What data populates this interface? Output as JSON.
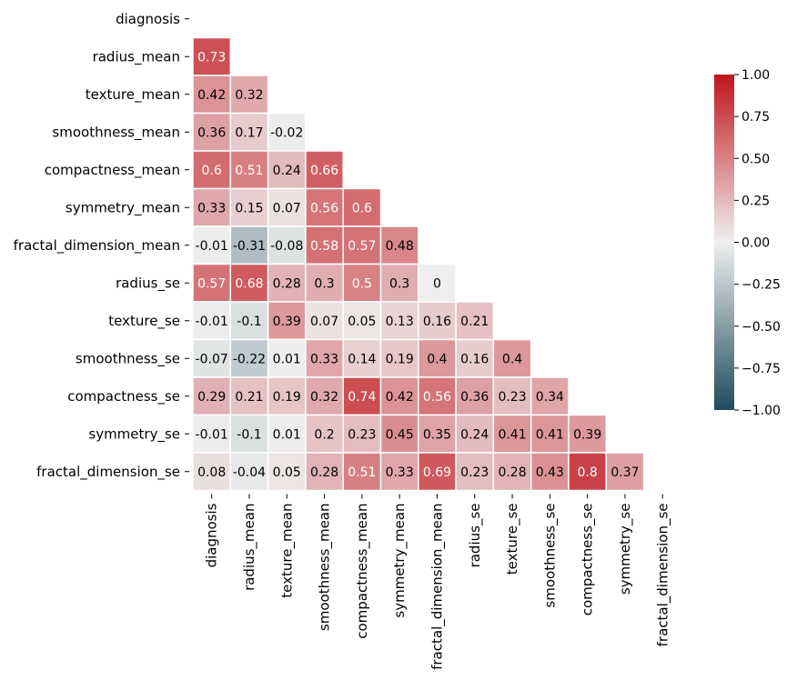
{
  "chart_data": {
    "type": "heatmap",
    "title": "",
    "xlabel": "",
    "ylabel": "",
    "layout": "lower-triangle",
    "variables": [
      "diagnosis",
      "radius_mean",
      "texture_mean",
      "smoothness_mean",
      "compactness_mean",
      "symmetry_mean",
      "fractal_dimension_mean",
      "radius_se",
      "texture_se",
      "smoothness_se",
      "compactness_se",
      "symmetry_se",
      "fractal_dimension_se"
    ],
    "values": [
      [],
      [
        0.73
      ],
      [
        0.42,
        0.32
      ],
      [
        0.36,
        0.17,
        -0.02
      ],
      [
        0.6,
        0.51,
        0.24,
        0.66
      ],
      [
        0.33,
        0.15,
        0.07,
        0.56,
        0.6
      ],
      [
        -0.01,
        -0.31,
        -0.08,
        0.58,
        0.57,
        0.48
      ],
      [
        0.57,
        0.68,
        0.28,
        0.3,
        0.5,
        0.3,
        0
      ],
      [
        -0.01,
        -0.1,
        0.39,
        0.07,
        0.05,
        0.13,
        0.16,
        0.21
      ],
      [
        -0.07,
        -0.22,
        0.01,
        0.33,
        0.14,
        0.19,
        0.4,
        0.16,
        0.4
      ],
      [
        0.29,
        0.21,
        0.19,
        0.32,
        0.74,
        0.42,
        0.56,
        0.36,
        0.23,
        0.34
      ],
      [
        -0.01,
        -0.1,
        0.01,
        0.2,
        0.23,
        0.45,
        0.35,
        0.24,
        0.41,
        0.41,
        0.39
      ],
      [
        0.08,
        -0.04,
        0.05,
        0.28,
        0.51,
        0.33,
        0.69,
        0.23,
        0.28,
        0.43,
        0.8,
        0.37
      ]
    ],
    "colorbar": {
      "range": [
        -1.0,
        1.0
      ],
      "ticks": [
        "1.00",
        "0.75",
        "0.50",
        "0.25",
        "0.00",
        "−0.25",
        "−0.50",
        "−0.75",
        "−1.00"
      ],
      "tick_values": [
        1.0,
        0.75,
        0.5,
        0.25,
        0.0,
        -0.25,
        -0.5,
        -0.75,
        -1.0
      ],
      "placement": "right"
    },
    "colors": {
      "negative": "#1f4b5c",
      "neutral": "#efefef",
      "positive": "#c0151c",
      "cell_border": "#ffffff",
      "text_dark": "#000000",
      "text_light": "#ffffff"
    }
  }
}
